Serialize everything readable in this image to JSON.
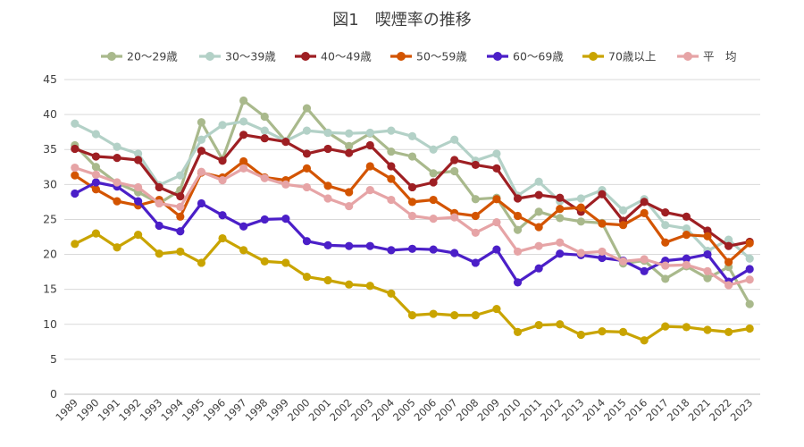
{
  "chart_data": {
    "type": "line",
    "title": "図1　喫煙率の推移",
    "xlabel": "",
    "ylabel": "",
    "ylim": [
      0,
      45
    ],
    "yticks": [
      0,
      5,
      10,
      15,
      20,
      25,
      30,
      35,
      40,
      45
    ],
    "grid": true,
    "legend_position": "top",
    "categories": [
      "1989",
      "1990",
      "1991",
      "1992",
      "1993",
      "1994",
      "1995",
      "1996",
      "1997",
      "1998",
      "1999",
      "2000",
      "2001",
      "2002",
      "2003",
      "2004",
      "2005",
      "2006",
      "2007",
      "2008",
      "2009",
      "2010",
      "2011",
      "2012",
      "2013",
      "2014",
      "2015",
      "2016",
      "2017",
      "2018",
      "2021",
      "2022",
      "2023"
    ],
    "series": [
      {
        "name": "20～29歳",
        "color": "#a9b98c",
        "values": [
          35.6,
          32.5,
          30.2,
          28.9,
          27.3,
          29.2,
          38.9,
          33.6,
          42.0,
          39.7,
          36.2,
          40.9,
          37.4,
          35.5,
          37.3,
          34.7,
          34.0,
          31.6,
          31.9,
          27.9,
          28.1,
          23.5,
          26.1,
          25.2,
          24.7,
          24.5,
          18.7,
          19.1,
          16.5,
          18.3,
          16.6,
          18.2,
          12.9
        ]
      },
      {
        "name": "30～39歳",
        "color": "#b3d1c7",
        "values": [
          38.7,
          37.2,
          35.4,
          34.4,
          29.9,
          31.3,
          36.4,
          38.5,
          39.0,
          37.7,
          36.2,
          37.7,
          37.4,
          37.3,
          37.4,
          37.7,
          36.9,
          35.0,
          36.4,
          33.4,
          34.4,
          28.4,
          30.4,
          27.6,
          28.0,
          29.2,
          26.3,
          27.9,
          24.2,
          23.7,
          20.5,
          22.1,
          19.4
        ]
      },
      {
        "name": "40～49歳",
        "color": "#9e1f23",
        "values": [
          35.1,
          34.0,
          33.8,
          33.5,
          29.6,
          28.3,
          34.8,
          33.4,
          37.1,
          36.6,
          36.1,
          34.4,
          35.1,
          34.5,
          35.6,
          32.6,
          29.6,
          30.3,
          33.5,
          32.8,
          32.3,
          28.0,
          28.5,
          28.1,
          26.1,
          28.6,
          24.8,
          27.5,
          26.0,
          25.4,
          23.4,
          21.2,
          21.8
        ]
      },
      {
        "name": "50～59歳",
        "color": "#d35400",
        "values": [
          31.3,
          29.3,
          27.6,
          27.0,
          27.8,
          25.4,
          31.7,
          31.0,
          33.3,
          31.0,
          30.6,
          32.3,
          29.8,
          28.9,
          32.6,
          30.8,
          27.5,
          27.8,
          25.9,
          25.5,
          27.9,
          25.5,
          23.9,
          26.5,
          26.7,
          24.4,
          24.2,
          25.9,
          21.7,
          22.8,
          22.6,
          18.9,
          21.6
        ]
      },
      {
        "name": "60～69歳",
        "color": "#4b1fc8",
        "values": [
          28.7,
          30.3,
          29.7,
          27.6,
          24.1,
          23.3,
          27.3,
          25.6,
          24.0,
          25.0,
          25.1,
          21.9,
          21.3,
          21.2,
          21.2,
          20.6,
          20.8,
          20.7,
          20.2,
          18.8,
          20.7,
          16.0,
          18.0,
          20.1,
          19.9,
          19.5,
          19.1,
          17.6,
          19.1,
          19.4,
          20.0,
          16.1,
          17.9
        ]
      },
      {
        "name": "70歳以上",
        "color": "#c9a400",
        "values": [
          21.5,
          23.0,
          21.0,
          22.8,
          20.1,
          20.4,
          18.8,
          22.3,
          20.6,
          19.0,
          18.8,
          16.8,
          16.3,
          15.7,
          15.5,
          14.4,
          11.3,
          11.5,
          11.3,
          11.3,
          12.2,
          8.9,
          9.9,
          10.0,
          8.5,
          9.0,
          8.9,
          7.7,
          9.7,
          9.6,
          9.2,
          8.9,
          9.4
        ]
      },
      {
        "name": "平　均",
        "color": "#e6a4a6",
        "values": [
          32.4,
          31.4,
          30.3,
          29.6,
          27.3,
          26.8,
          31.8,
          30.6,
          32.3,
          30.9,
          30.0,
          29.6,
          28.0,
          26.9,
          29.2,
          27.8,
          25.5,
          25.1,
          25.3,
          23.1,
          24.6,
          20.4,
          21.2,
          21.7,
          20.2,
          20.4,
          19.0,
          19.3,
          18.4,
          18.5,
          17.6,
          15.6,
          16.4
        ]
      }
    ]
  }
}
